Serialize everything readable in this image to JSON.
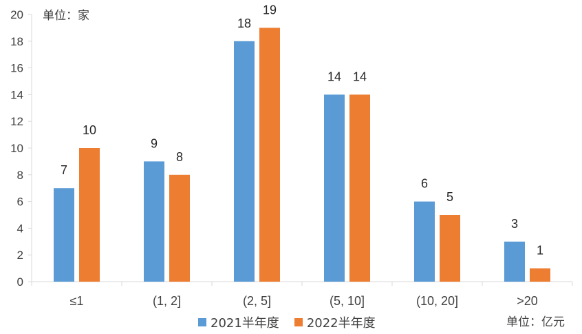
{
  "chart_data": {
    "type": "bar",
    "categories": [
      "≤1",
      "(1, 2]",
      "(2, 5]",
      "(5, 10]",
      "(10, 20]",
      ">20"
    ],
    "series": [
      {
        "name": "2021半年度",
        "values": [
          7,
          9,
          18,
          14,
          6,
          3
        ],
        "color": "#5b9bd5"
      },
      {
        "name": "2022半年度",
        "values": [
          10,
          8,
          19,
          14,
          5,
          1
        ],
        "color": "#ed7d31"
      }
    ],
    "ylim": [
      0,
      20
    ],
    "yticks": [
      0,
      2,
      4,
      6,
      8,
      10,
      12,
      14,
      16,
      18,
      20
    ],
    "grid": false,
    "legend_position": "bottom"
  },
  "labels": {
    "unit_y": "单位：家",
    "unit_x": "单位：亿元"
  }
}
